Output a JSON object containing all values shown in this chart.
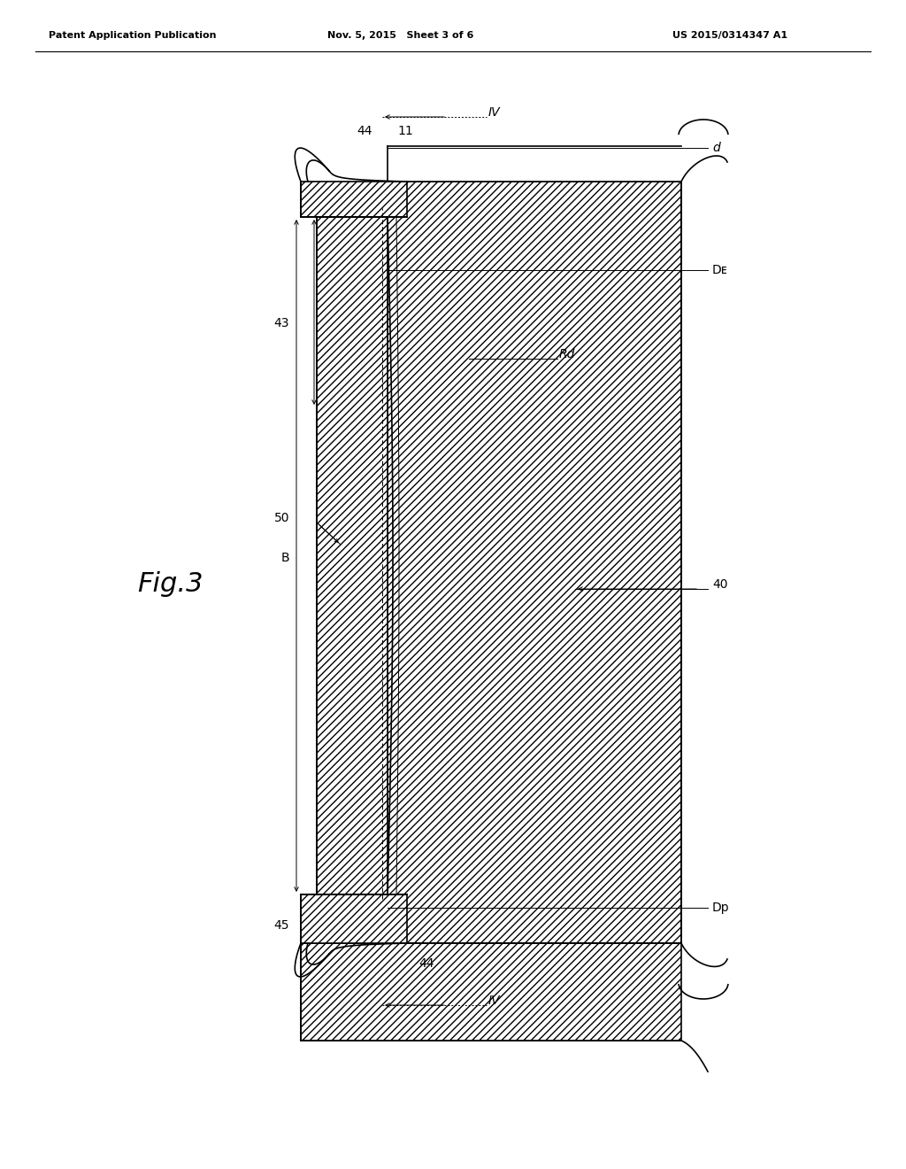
{
  "bg_color": "#ffffff",
  "line_color": "#000000",
  "header_left": "Patent Application Publication",
  "header_mid": "Nov. 5, 2015   Sheet 3 of 6",
  "header_right": "US 2015/0314347 A1",
  "fig_label": "Fig.3"
}
